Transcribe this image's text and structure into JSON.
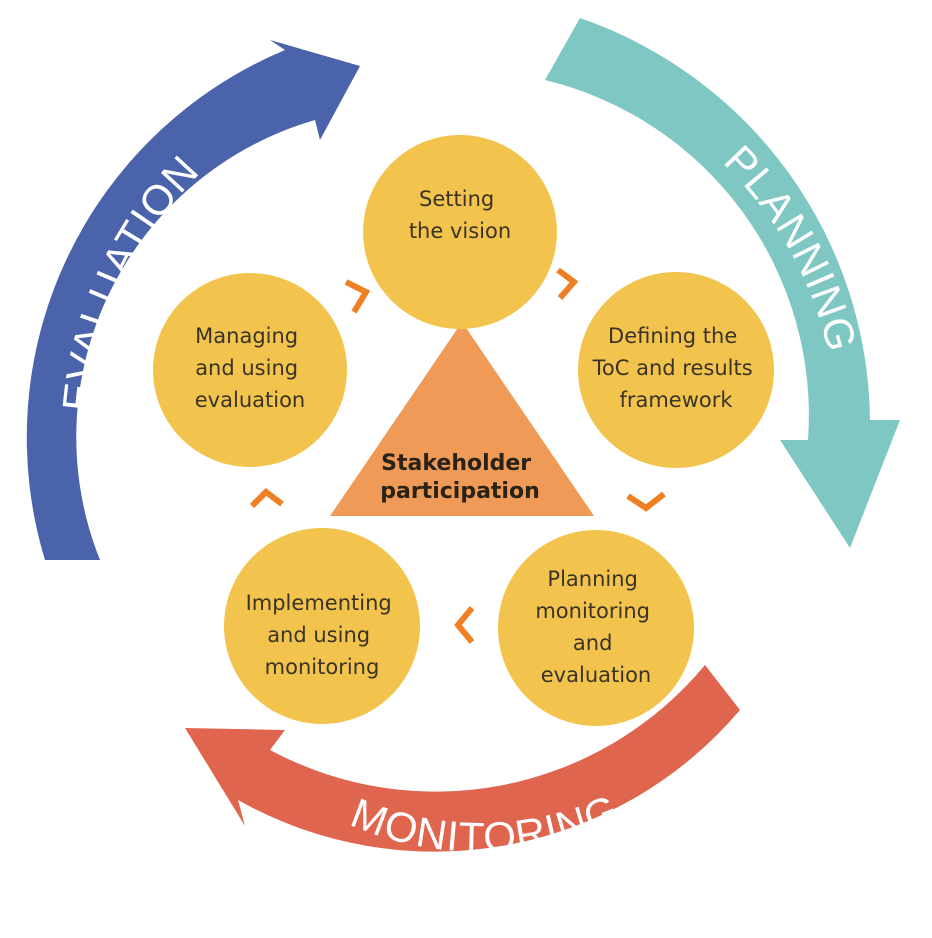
{
  "colors": {
    "evaluation": "#4b63ab",
    "planning": "#7fc7c3",
    "monitoring": "#e0654f",
    "circle": "#f2c44d",
    "triangle": "#ef9a56",
    "chevron": "#ee7f22"
  },
  "arcs": {
    "evaluation": "EVALUATION",
    "planning": "PLANNING",
    "monitoring": "MONITORING"
  },
  "center": {
    "line1": "Stakeholder",
    "line2": "participation"
  },
  "steps": [
    {
      "lines": [
        "Setting",
        "the vision"
      ]
    },
    {
      "lines": [
        "Defining the",
        "ToC and results",
        "framework"
      ]
    },
    {
      "lines": [
        "Planning",
        "monitoring",
        "and",
        "evaluation"
      ]
    },
    {
      "lines": [
        "Implementing",
        "and using",
        "monitoring"
      ]
    },
    {
      "lines": [
        "Managing",
        "and using",
        "evaluation"
      ]
    }
  ]
}
